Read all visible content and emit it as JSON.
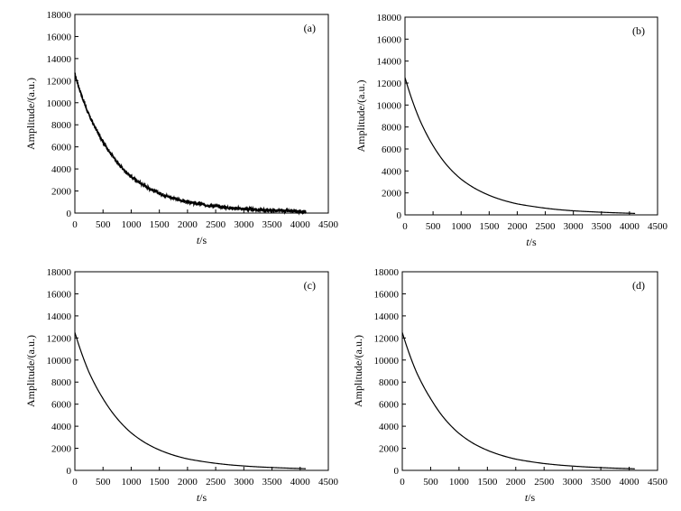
{
  "chart_data": [
    {
      "type": "line",
      "panel_label": "(a)",
      "xlabel_italic": "t",
      "xlabel_unit": "/s",
      "ylabel": "Amplitude/(a.u.)",
      "xlim": [
        0,
        4500
      ],
      "ylim": [
        0,
        18000
      ],
      "x_ticks": [
        "0",
        "500",
        "1000",
        "1500",
        "2000",
        "2500",
        "3000",
        "3500",
        "4000",
        "4500"
      ],
      "y_ticks": [
        "0",
        "2000",
        "4000",
        "6000",
        "8000",
        "10000",
        "12000",
        "14000",
        "16000",
        "18000"
      ],
      "grid": false,
      "legend": "none",
      "noisy": true,
      "series": [
        {
          "x": [
            0,
            250,
            500,
            750,
            1000,
            1250,
            1500,
            1750,
            2000,
            2250,
            2500,
            2750,
            3000,
            3250,
            3500,
            3750,
            4000,
            4100
          ],
          "y": [
            12600,
            8900,
            6500,
            4600,
            3300,
            2450,
            1800,
            1350,
            1000,
            800,
            620,
            480,
            380,
            300,
            240,
            190,
            150,
            130
          ]
        }
      ]
    },
    {
      "type": "line",
      "panel_label": "(b)",
      "xlabel_italic": "t",
      "xlabel_unit": "/s",
      "ylabel": "Amplitude/(a.u.)",
      "xlim": [
        0,
        4500
      ],
      "ylim": [
        0,
        18000
      ],
      "x_ticks": [
        "0",
        "500",
        "1000",
        "1500",
        "2000",
        "2500",
        "3000",
        "3500",
        "4000",
        "4500"
      ],
      "y_ticks": [
        "0",
        "2000",
        "4000",
        "6000",
        "8000",
        "10000",
        "12000",
        "14000",
        "16000",
        "18000"
      ],
      "grid": false,
      "legend": "none",
      "noisy": false,
      "series": [
        {
          "x": [
            0,
            250,
            500,
            750,
            1000,
            1250,
            1500,
            1750,
            2000,
            2250,
            2500,
            2750,
            3000,
            3250,
            3500,
            3750,
            4000,
            4100
          ],
          "y": [
            12500,
            8800,
            6300,
            4500,
            3250,
            2400,
            1780,
            1330,
            1000,
            790,
            610,
            470,
            370,
            300,
            240,
            190,
            150,
            130
          ]
        }
      ]
    },
    {
      "type": "line",
      "panel_label": "(c)",
      "xlabel_italic": "t",
      "xlabel_unit": "/s",
      "ylabel": "Amplitude/(a.u.)",
      "xlim": [
        0,
        4500
      ],
      "ylim": [
        0,
        18000
      ],
      "x_ticks": [
        "0",
        "500",
        "1000",
        "1500",
        "2000",
        "2500",
        "3000",
        "3500",
        "4000",
        "4500"
      ],
      "y_ticks": [
        "0",
        "2000",
        "4000",
        "6000",
        "8000",
        "10000",
        "12000",
        "14000",
        "16000",
        "18000"
      ],
      "grid": false,
      "legend": "none",
      "noisy": false,
      "series": [
        {
          "x": [
            0,
            250,
            500,
            750,
            1000,
            1250,
            1500,
            1750,
            2000,
            2250,
            2500,
            2750,
            3000,
            3250,
            3500,
            3750,
            4000,
            4100
          ],
          "y": [
            12500,
            8900,
            6500,
            4700,
            3400,
            2500,
            1850,
            1380,
            1040,
            820,
            640,
            500,
            400,
            320,
            260,
            210,
            170,
            150
          ]
        }
      ]
    },
    {
      "type": "line",
      "panel_label": "(d)",
      "xlabel_italic": "t",
      "xlabel_unit": "/s",
      "ylabel": "Amplitude/(a.u.)",
      "xlim": [
        0,
        4500
      ],
      "ylim": [
        0,
        18000
      ],
      "x_ticks": [
        "0",
        "500",
        "1000",
        "1500",
        "2000",
        "2500",
        "3000",
        "3500",
        "4000",
        "4500"
      ],
      "y_ticks": [
        "0",
        "2000",
        "4000",
        "6000",
        "8000",
        "10000",
        "12000",
        "14000",
        "16000",
        "18000"
      ],
      "grid": false,
      "legend": "none",
      "noisy": false,
      "series": [
        {
          "x": [
            0,
            250,
            500,
            750,
            1000,
            1250,
            1500,
            1750,
            2000,
            2250,
            2500,
            2750,
            3000,
            3250,
            3500,
            3750,
            4000,
            4100
          ],
          "y": [
            12500,
            8900,
            6500,
            4650,
            3350,
            2450,
            1820,
            1360,
            1020,
            800,
            620,
            490,
            390,
            310,
            250,
            200,
            160,
            140
          ]
        }
      ]
    }
  ]
}
